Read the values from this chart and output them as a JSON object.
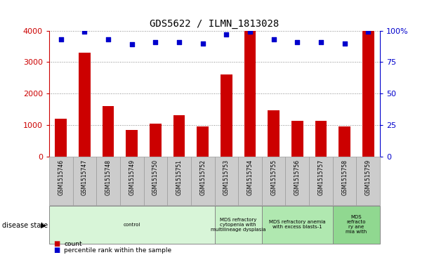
{
  "title": "GDS5622 / ILMN_1813028",
  "samples": [
    "GSM1515746",
    "GSM1515747",
    "GSM1515748",
    "GSM1515749",
    "GSM1515750",
    "GSM1515751",
    "GSM1515752",
    "GSM1515753",
    "GSM1515754",
    "GSM1515755",
    "GSM1515756",
    "GSM1515757",
    "GSM1515758",
    "GSM1515759"
  ],
  "counts": [
    1200,
    3300,
    1600,
    850,
    1050,
    1320,
    960,
    2600,
    4000,
    1480,
    1150,
    1150,
    960,
    4000
  ],
  "percentiles": [
    93,
    99,
    93,
    89,
    91,
    91,
    90,
    97,
    99,
    93,
    91,
    91,
    90,
    99
  ],
  "ylim_left": [
    0,
    4000
  ],
  "ylim_right": [
    0,
    100
  ],
  "yticks_left": [
    0,
    1000,
    2000,
    3000,
    4000
  ],
  "yticks_right": [
    0,
    25,
    50,
    75,
    100
  ],
  "disease_groups": [
    {
      "label": "control",
      "start": 0,
      "end": 7,
      "color": "#d8f5d8"
    },
    {
      "label": "MDS refractory\ncytopenia with\nmultilineage dysplasia",
      "start": 7,
      "end": 9,
      "color": "#c8f0c8"
    },
    {
      "label": "MDS refractory anemia\nwith excess blasts-1",
      "start": 9,
      "end": 12,
      "color": "#b0e8b0"
    },
    {
      "label": "MDS\nrefracto\nry ane\nmia with",
      "start": 12,
      "end": 14,
      "color": "#90d890"
    }
  ],
  "bar_color": "#cc0000",
  "scatter_color": "#0000cc",
  "bar_width": 0.5,
  "grid_color": "#888888",
  "left_axis_color": "#cc0000",
  "right_axis_color": "#0000cc",
  "xlabel_box_color": "#cccccc",
  "xlabel_box_edge": "#999999"
}
